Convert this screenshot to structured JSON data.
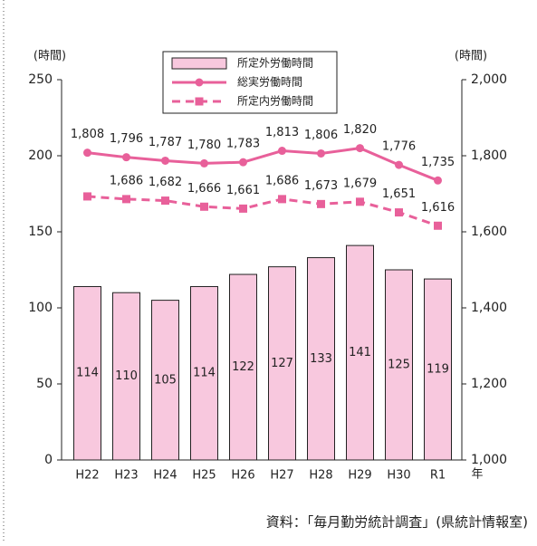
{
  "chart_data": {
    "type": "bar",
    "y_axis_label": "(時間)",
    "y2_axis_label": "(時間)",
    "x_axis_label": "年",
    "source": "資料：「毎月勤労統計調査」(県統計情報室)",
    "categories": [
      "H22",
      "H23",
      "H24",
      "H25",
      "H26",
      "H27",
      "H28",
      "H29",
      "H30",
      "R1"
    ],
    "series": [
      {
        "name": "所定外労働時間",
        "type": "bar",
        "color": "#f8c8de",
        "values": [
          114,
          110,
          105,
          114,
          122,
          127,
          133,
          141,
          125,
          119
        ]
      },
      {
        "name": "総実労働時間",
        "type": "line",
        "axis": "y2",
        "color": "#e8609a",
        "dashed": false,
        "marker": "circle",
        "values": [
          1808,
          1796,
          1787,
          1780,
          1783,
          1813,
          1806,
          1820,
          1776,
          1735
        ],
        "value_labels": [
          "1,808",
          "1,796",
          "1,787",
          "1,780",
          "1,783",
          "1,813",
          "1,806",
          "1,820",
          "1,776",
          "1,735"
        ]
      },
      {
        "name": "所定内労働時間",
        "type": "line",
        "axis": "y2",
        "color": "#e8609a",
        "dashed": true,
        "marker": "square",
        "values": [
          1693,
          1686,
          1682,
          1666,
          1661,
          1686,
          1673,
          1679,
          1651,
          1616
        ],
        "value_labels": [
          null,
          "1,686",
          "1,682",
          "1,666",
          "1,661",
          "1,686",
          "1,673",
          "1,679",
          "1,651",
          "1,616"
        ]
      }
    ],
    "ylim": [
      0,
      250
    ],
    "yticks": [
      0,
      50,
      100,
      150,
      200,
      250
    ],
    "y2lim": [
      1000,
      2000
    ],
    "y2ticks": [
      {
        "value": 1000,
        "label": "1,000"
      },
      {
        "value": 1200,
        "label": "1,200"
      },
      {
        "value": 1400,
        "label": "1,400"
      },
      {
        "value": 1600,
        "label": "1,600"
      },
      {
        "value": 1800,
        "label": "1,800"
      },
      {
        "value": 2000,
        "label": "2,000"
      }
    ]
  }
}
